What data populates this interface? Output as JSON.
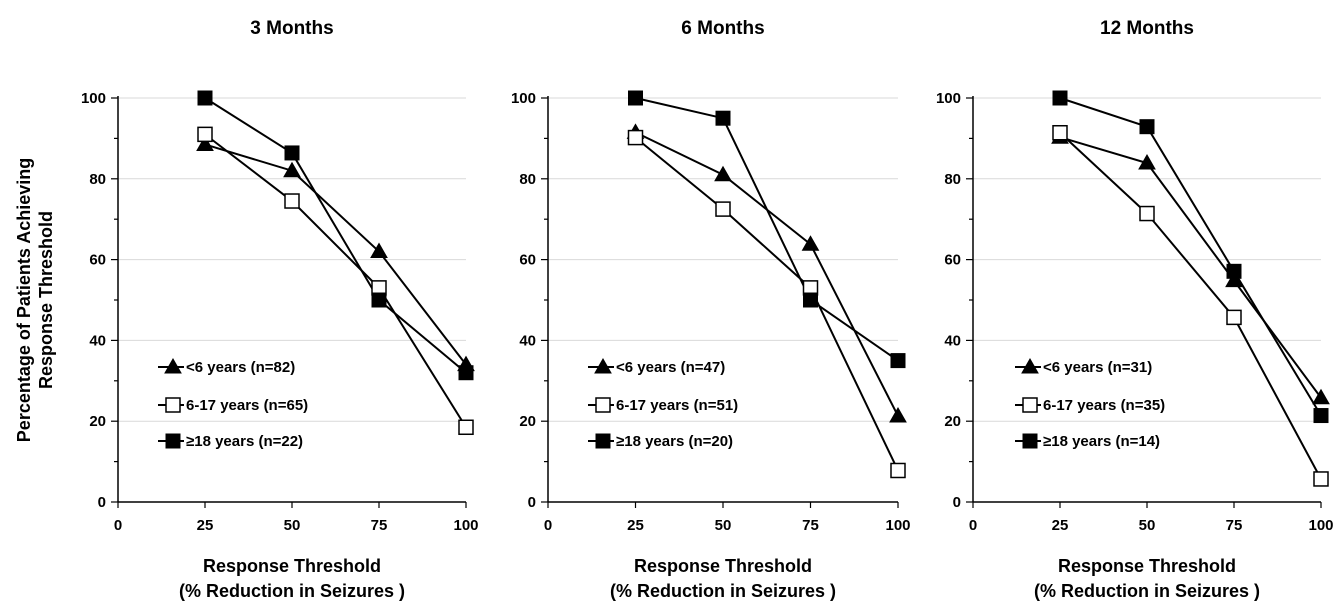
{
  "chart_data": [
    {
      "type": "line",
      "title": "3 Months",
      "xlabel": [
        "Response Threshold",
        "(% Reduction in Seizures )"
      ],
      "ylabel": [
        "Percentage of Patients Achieving",
        "Response Threshold"
      ],
      "xlim": [
        0,
        100
      ],
      "ylim": [
        0,
        100
      ],
      "x_ticks": [
        0,
        25,
        50,
        75,
        100
      ],
      "y_ticks": [
        0,
        20,
        40,
        60,
        80,
        100
      ],
      "grid": "horizontal",
      "legend_position": "bottom-left",
      "x": [
        25,
        50,
        75,
        100
      ],
      "series": [
        {
          "name": "<6 years (n=82)",
          "marker": "triangle-filled",
          "values": [
            88.5,
            82,
            62,
            34
          ]
        },
        {
          "name": "6-17 years (n=65)",
          "marker": "square-open",
          "values": [
            91,
            74.5,
            53,
            18.5
          ]
        },
        {
          "name": "≥18 years (n=22)",
          "marker": "square-filled",
          "values": [
            100,
            86.4,
            50,
            32
          ]
        }
      ]
    },
    {
      "type": "line",
      "title": "6 Months",
      "xlabel": [
        "Response Threshold",
        "(% Reduction in Seizures )"
      ],
      "xlim": [
        0,
        100
      ],
      "ylim": [
        0,
        100
      ],
      "x_ticks": [
        0,
        25,
        50,
        75,
        100
      ],
      "y_ticks": [
        0,
        20,
        40,
        60,
        80,
        100
      ],
      "grid": "horizontal",
      "legend_position": "bottom-left",
      "x": [
        25,
        50,
        75,
        100
      ],
      "series": [
        {
          "name": "<6 years (n=47)",
          "marker": "triangle-filled",
          "values": [
            91.5,
            81,
            63.8,
            21.3
          ]
        },
        {
          "name": "6-17 years (n=51)",
          "marker": "square-open",
          "values": [
            90.2,
            72.5,
            53,
            7.8
          ]
        },
        {
          "name": "≥18 years  (n=20)",
          "marker": "square-filled",
          "values": [
            100,
            95,
            50,
            35
          ]
        }
      ]
    },
    {
      "type": "line",
      "title": "12 Months",
      "xlabel": [
        "Response Threshold",
        "(% Reduction in Seizures )"
      ],
      "xlim": [
        0,
        100
      ],
      "ylim": [
        0,
        100
      ],
      "x_ticks": [
        0,
        25,
        50,
        75,
        100
      ],
      "y_ticks": [
        0,
        20,
        40,
        60,
        80,
        100
      ],
      "grid": "horizontal",
      "legend_position": "bottom-left",
      "x": [
        25,
        50,
        75,
        100
      ],
      "series": [
        {
          "name": "<6 years (n=31)",
          "marker": "triangle-filled",
          "values": [
            90.3,
            83.9,
            54.8,
            25.8
          ]
        },
        {
          "name": "6-17 years (n=35)",
          "marker": "square-open",
          "values": [
            91.4,
            71.4,
            45.7,
            5.7
          ]
        },
        {
          "name": "≥18 years (n=14)",
          "marker": "square-filled",
          "values": [
            100,
            92.9,
            57.1,
            21.4
          ]
        }
      ]
    }
  ],
  "colors": {
    "line": "#000000",
    "grid": "#d9d9d9",
    "marker_fill": "#000000",
    "open_marker_fill": "#ffffff",
    "background": "#ffffff"
  }
}
